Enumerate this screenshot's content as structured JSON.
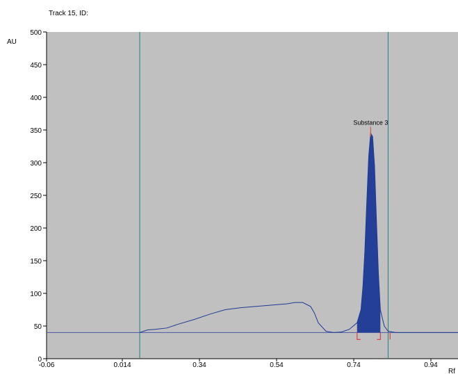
{
  "chart_data": {
    "type": "line",
    "title": "Track 15, ID:",
    "ylabel": "AU",
    "xlabel": "Rf",
    "x_tick_labels": [
      "-0.06",
      "0.014",
      "0.34",
      "0.54",
      "0.74",
      "0.94"
    ],
    "y_ticks": [
      0,
      50,
      100,
      150,
      200,
      250,
      300,
      350,
      400,
      450,
      500
    ],
    "ylim": [
      0,
      500
    ],
    "grid": false,
    "legend": "none",
    "colors": {
      "plot_background": "#c0c0c0",
      "trace": "#1f3a93",
      "peak_fill": "#233f97",
      "vertical_markers": "#2e7d7d",
      "baseline": "#4a5aa0",
      "integration_marks": "#e04040"
    },
    "vertical_markers_rf": [
      0.18,
      0.82
    ],
    "baseline_au": 40,
    "series": [
      {
        "x": [
          0.18,
          0.2,
          0.22,
          0.25,
          0.28,
          0.32,
          0.36,
          0.4,
          0.44,
          0.48,
          0.52,
          0.56,
          0.58,
          0.6,
          0.62,
          0.63,
          0.64,
          0.66,
          0.68,
          0.7,
          0.72,
          0.73,
          0.74,
          0.75,
          0.755,
          0.76,
          0.765,
          0.77,
          0.775,
          0.78,
          0.785,
          0.79,
          0.795,
          0.8,
          0.81,
          0.82,
          0.84,
          0.86,
          0.9,
          1.0
        ],
        "values": [
          40,
          44,
          45,
          47,
          53,
          60,
          68,
          75,
          78,
          80,
          82,
          84,
          86,
          86,
          80,
          70,
          55,
          42,
          40,
          41,
          45,
          50,
          55,
          75,
          110,
          165,
          240,
          310,
          345,
          340,
          295,
          210,
          130,
          75,
          50,
          42,
          40,
          40,
          40,
          40
        ]
      }
    ],
    "annotations": [
      {
        "text": "Substance 3",
        "x": 0.775,
        "y": 355
      }
    ],
    "peak_integration_range": [
      0.74,
      0.8
    ]
  }
}
